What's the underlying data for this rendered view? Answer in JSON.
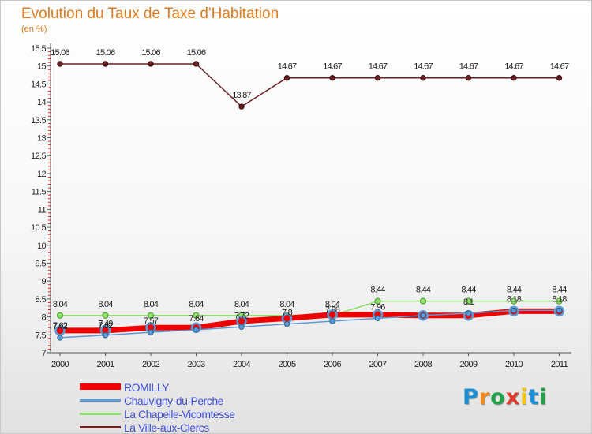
{
  "chart_data": {
    "type": "line",
    "title": "Evolution du Taux de Taxe d'Habitation",
    "subtitle": "(en %)",
    "x": [
      "2000",
      "2001",
      "2002",
      "2003",
      "2004",
      "2005",
      "2006",
      "2007",
      "2008",
      "2009",
      "2010",
      "2011"
    ],
    "ylim": [
      7,
      15.5
    ],
    "yticks": [
      "7",
      "7.5",
      "8",
      "8.5",
      "9",
      "9.5",
      "10",
      "10.5",
      "11",
      "11.5",
      "12",
      "12.5",
      "13",
      "13.5",
      "14",
      "14.5",
      "15",
      "15.5"
    ],
    "grid": false,
    "legend_position": "bottom-left",
    "series": [
      {
        "name": "ROMILLY",
        "color": "#ee0000",
        "values": [
          7.62,
          7.62,
          7.7,
          7.7,
          7.88,
          7.96,
          8.06,
          8.06,
          8.04,
          8.04,
          8.16,
          8.16
        ],
        "labels": [
          "7.62",
          "7.62",
          "",
          "",
          "",
          "",
          "",
          "",
          "",
          "",
          "",
          ""
        ]
      },
      {
        "name": "Chauvigny-du-Perche",
        "color": "#5b9bd5",
        "values": [
          7.42,
          7.49,
          7.57,
          7.64,
          7.72,
          7.8,
          7.88,
          7.96,
          8.04,
          8.1,
          8.18,
          8.18
        ],
        "labels": [
          "7.42",
          "7.49",
          "7.57",
          "7.64",
          "7.72",
          "7.8",
          "7.88",
          "7.96",
          "",
          "8.1",
          "8.18",
          "8.18"
        ]
      },
      {
        "name": "La Chapelle-Vicomtesse",
        "color": "#8fe06a",
        "values": [
          8.04,
          8.04,
          8.04,
          8.04,
          8.04,
          8.04,
          8.04,
          8.44,
          8.44,
          8.44,
          8.44,
          8.44
        ],
        "labels": [
          "8.04",
          "8.04",
          "8.04",
          "8.04",
          "8.04",
          "8.04",
          "8.04",
          "8.44",
          "8.44",
          "8.44",
          "8.44",
          "8.44"
        ]
      },
      {
        "name": "La Ville-aux-Clercs",
        "color": "#6b2121",
        "values": [
          15.06,
          15.06,
          15.06,
          15.06,
          13.87,
          14.67,
          14.67,
          14.67,
          14.67,
          14.67,
          14.67,
          14.67
        ],
        "labels": [
          "15.06",
          "15.06",
          "15.06",
          "15.06",
          "13.87",
          "14.67",
          "14.67",
          "14.67",
          "14.67",
          "14.67",
          "14.67",
          "14.67"
        ]
      }
    ]
  },
  "logo": {
    "text": "Proxiti",
    "letters": [
      "P",
      "r",
      "o",
      "x",
      "i",
      "t",
      "i"
    ],
    "colors": [
      "#1b8fd6",
      "#f08a1c",
      "#22a24a",
      "#e23b2e",
      "#f5c21a",
      "#1b8fd6",
      "#22a24a"
    ]
  }
}
